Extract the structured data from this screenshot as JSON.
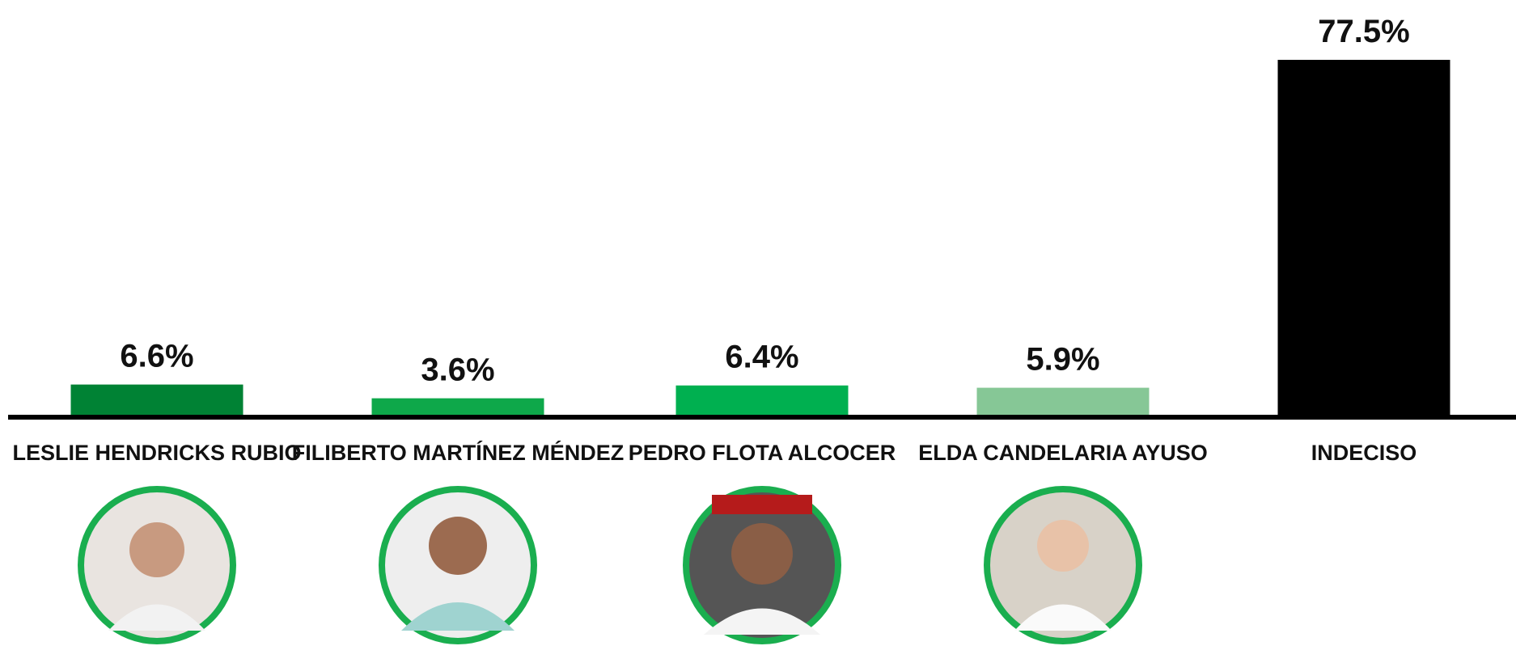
{
  "chart_data": {
    "type": "bar",
    "categories": [
      "LESLIE HENDRICKS RUBIO",
      "FILIBERTO MARTÍNEZ MÉNDEZ",
      "PEDRO FLOTA ALCOCER",
      "ELDA CANDELARIA AYUSO",
      "INDECISO"
    ],
    "values": [
      6.6,
      3.6,
      6.4,
      5.9,
      77.5
    ],
    "value_labels": [
      "6.6%",
      "3.6%",
      "6.4%",
      "5.9%",
      "77.5%"
    ],
    "colors": [
      "#008234",
      "#0ea84a",
      "#00b050",
      "#86c796",
      "#000000"
    ]
  }
}
